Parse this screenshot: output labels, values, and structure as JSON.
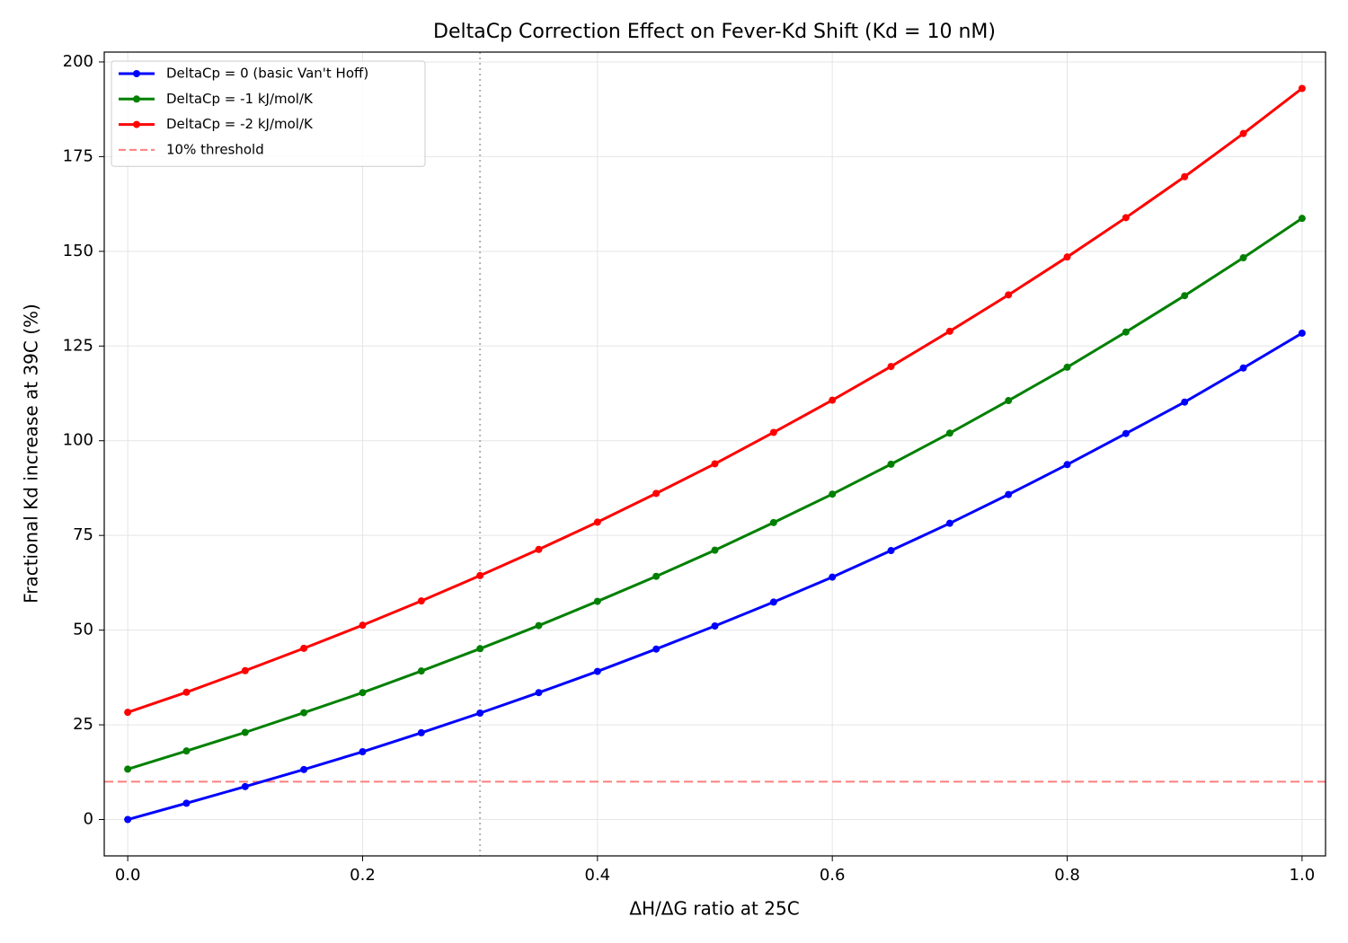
{
  "chart_data": {
    "type": "line",
    "title": "DeltaCp Correction Effect on Fever-Kd Shift (Kd = 10 nM)",
    "x_label": "ΔH/ΔG ratio at 25C",
    "y_label": "Fractional Kd increase at 39C (%)",
    "x": [
      0,
      0.05,
      0.1,
      0.15,
      0.2,
      0.25,
      0.3,
      0.35,
      0.4,
      0.45,
      0.5,
      0.55,
      0.6,
      0.65,
      0.7,
      0.75,
      0.8,
      0.85,
      0.9,
      0.95,
      1.0
    ],
    "series": [
      {
        "name": "DeltaCp = 0 (basic Van't Hoff)",
        "color": "#0000ff",
        "values": [
          0,
          4.3,
          8.7,
          13.2,
          17.9,
          22.9,
          28.1,
          33.5,
          39.1,
          45.0,
          51.1,
          57.4,
          64.0,
          71.0,
          78.2,
          85.8,
          93.7,
          101.9,
          110.2,
          119.2,
          128.4
        ]
      },
      {
        "name": "DeltaCp = -1 kJ/mol/K",
        "color": "#008000",
        "values": [
          13.3,
          18.1,
          23.0,
          28.2,
          33.5,
          39.2,
          45.1,
          51.2,
          57.6,
          64.2,
          71.1,
          78.4,
          85.9,
          93.8,
          102.0,
          110.6,
          119.4,
          128.7,
          138.3,
          148.3,
          158.7
        ]
      },
      {
        "name": "DeltaCp = -2 kJ/mol/K",
        "color": "#ff0000",
        "values": [
          28.3,
          33.6,
          39.3,
          45.2,
          51.3,
          57.7,
          64.4,
          71.3,
          78.5,
          86.1,
          93.9,
          102.2,
          110.7,
          119.6,
          128.9,
          138.5,
          148.5,
          158.9,
          169.7,
          181.1,
          193.0
        ]
      }
    ],
    "hlines": [
      {
        "y": 10,
        "label": "10% threshold",
        "color": "#ff7f7f"
      }
    ],
    "vlines": [
      {
        "x": 0.3,
        "color": "#b0b0b0"
      }
    ],
    "xlim": [
      -0.02,
      1.02
    ],
    "ylim": [
      -9.6,
      202.6
    ],
    "xticks": [
      {
        "value": 0,
        "label": "0.0"
      },
      0.2,
      0.4,
      0.6,
      0.8,
      {
        "value": 1,
        "label": "1.0"
      }
    ],
    "yticks": [
      0,
      25,
      50,
      75,
      100,
      125,
      150,
      175,
      200
    ],
    "grid": true,
    "legend": "upper left"
  }
}
